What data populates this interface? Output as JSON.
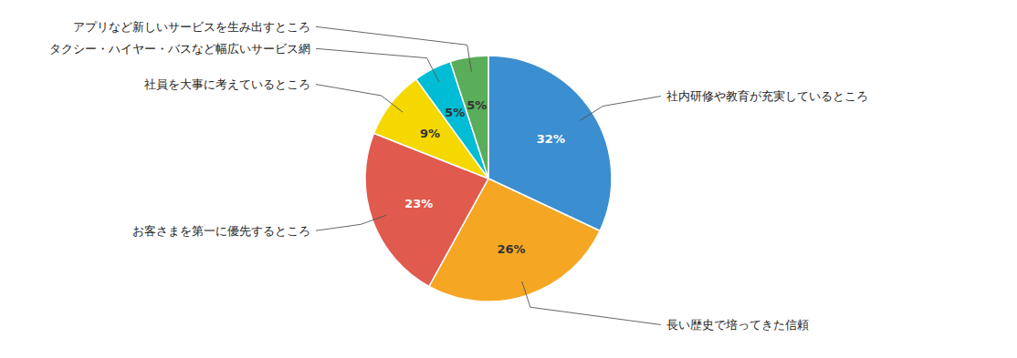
{
  "chart_data": {
    "type": "pie",
    "categories": [
      "社内研修や教育が充実しているところ",
      "長い歴史で培ってきた信頼",
      "お客さまを第一に優先するところ",
      "社員を大事に考えているところ",
      "タクシー・ハイヤー・バスなど幅広いサービス網",
      "アプリなど新しいサービスを生み出すところ"
    ],
    "values": [
      32,
      26,
      23,
      9,
      5,
      5
    ],
    "value_labels": [
      "32%",
      "26%",
      "23%",
      "9%",
      "5%",
      "5%"
    ],
    "colors": [
      "#3b8ed0",
      "#f5a623",
      "#e05a4e",
      "#f5d800",
      "#00bcd4",
      "#5aad5a"
    ],
    "data_labels": true
  }
}
